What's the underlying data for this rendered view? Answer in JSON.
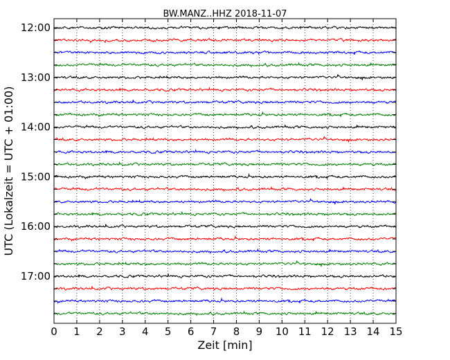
{
  "chart_data": {
    "type": "line",
    "title": "BW.MANZ..HHZ 2018-11-07",
    "xlabel": "Zeit  [min]",
    "ylabel": "UTC (Lokalzeit = UTC + 01:00)",
    "xlim": [
      0,
      15
    ],
    "x_ticks": [
      "0",
      "1",
      "2",
      "3",
      "4",
      "5",
      "6",
      "7",
      "8",
      "9",
      "10",
      "11",
      "12",
      "13",
      "14",
      "15"
    ],
    "y_tick_labels": [
      "12:00",
      "13:00",
      "14:00",
      "15:00",
      "16:00",
      "17:00"
    ],
    "trace_interval_minutes": 15,
    "trace_start_times": [
      "12:00",
      "12:15",
      "12:30",
      "12:45",
      "13:00",
      "13:15",
      "13:30",
      "13:45",
      "14:00",
      "14:15",
      "14:30",
      "14:45",
      "15:00",
      "15:15",
      "15:30",
      "15:45",
      "16:00",
      "16:15",
      "16:30",
      "16:45",
      "17:00",
      "17:15",
      "17:30",
      "17:45"
    ],
    "series_colors": [
      "#000000",
      "#ff0000",
      "#0000ff",
      "#008000"
    ],
    "grid": "vertical-dotted"
  }
}
